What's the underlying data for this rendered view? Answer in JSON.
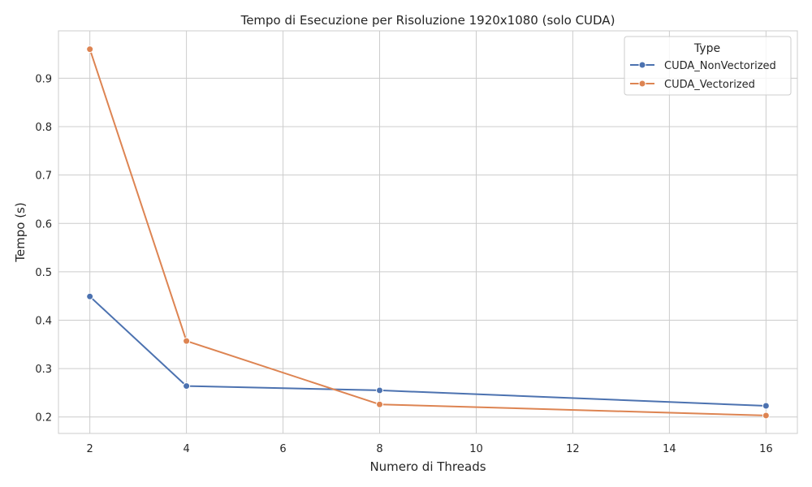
{
  "chart_data": {
    "type": "line",
    "title": "Tempo di Esecuzione per Risoluzione 1920x1080 (solo CUDA)",
    "xlabel": "Numero di Threads",
    "ylabel": "Tempo (s)",
    "xlim": [
      1.35,
      16.65
    ],
    "ylim": [
      0.166,
      0.998
    ],
    "xticks": [
      2,
      4,
      6,
      8,
      10,
      12,
      14,
      16
    ],
    "yticks": [
      0.2,
      0.3,
      0.4,
      0.5,
      0.6,
      0.7,
      0.8,
      0.9
    ],
    "xtick_labels": [
      "2",
      "4",
      "6",
      "8",
      "10",
      "12",
      "14",
      "16"
    ],
    "ytick_labels": [
      "0.2",
      "0.3",
      "0.4",
      "0.5",
      "0.6",
      "0.7",
      "0.8",
      "0.9"
    ],
    "grid": true,
    "legend": {
      "title": "Type",
      "position": "top-right"
    },
    "x": [
      2,
      4,
      8,
      16
    ],
    "series": [
      {
        "name": "CUDA_NonVectorized",
        "color": "#4c72b0",
        "values": [
          0.449,
          0.264,
          0.255,
          0.223
        ]
      },
      {
        "name": "CUDA_Vectorized",
        "color": "#dd8452",
        "values": [
          0.96,
          0.357,
          0.226,
          0.203
        ]
      }
    ]
  }
}
